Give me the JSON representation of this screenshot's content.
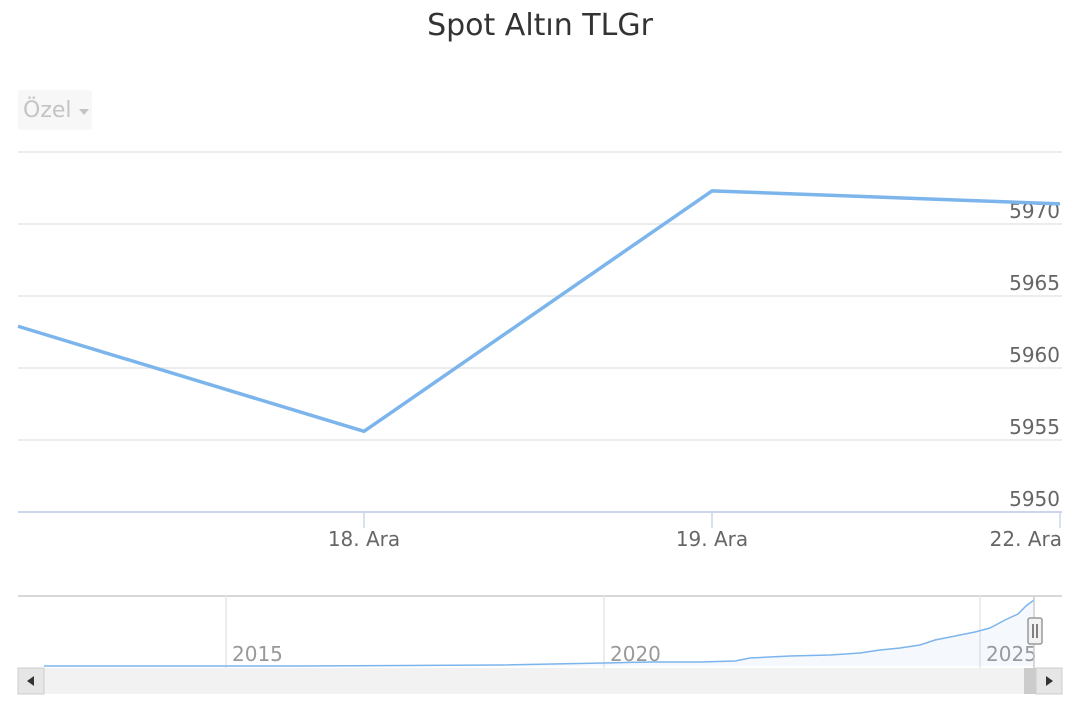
{
  "range_selector": {
    "label": "Özel"
  },
  "chart_data": {
    "type": "line",
    "title": "Spot Altın TLGr",
    "xlabel": "",
    "ylabel": "",
    "x_tick_labels": [
      "18. Ara",
      "19. Ara",
      "22. Ara"
    ],
    "y_ticks": [
      5950,
      5955,
      5960,
      5965,
      5970
    ],
    "ylim": [
      5950,
      5975
    ],
    "grid": true,
    "series": [
      {
        "color": "#7cb5ec",
        "x": [
          "17. Ara",
          "18. Ara",
          "19. Ara",
          "22. Ara"
        ],
        "values": [
          5962.9,
          5955.6,
          5972.3,
          5971.4
        ]
      }
    ],
    "navigator": {
      "year_labels": [
        "2015",
        "2020",
        "2025"
      ],
      "series_color": "#7cb5ec"
    }
  }
}
